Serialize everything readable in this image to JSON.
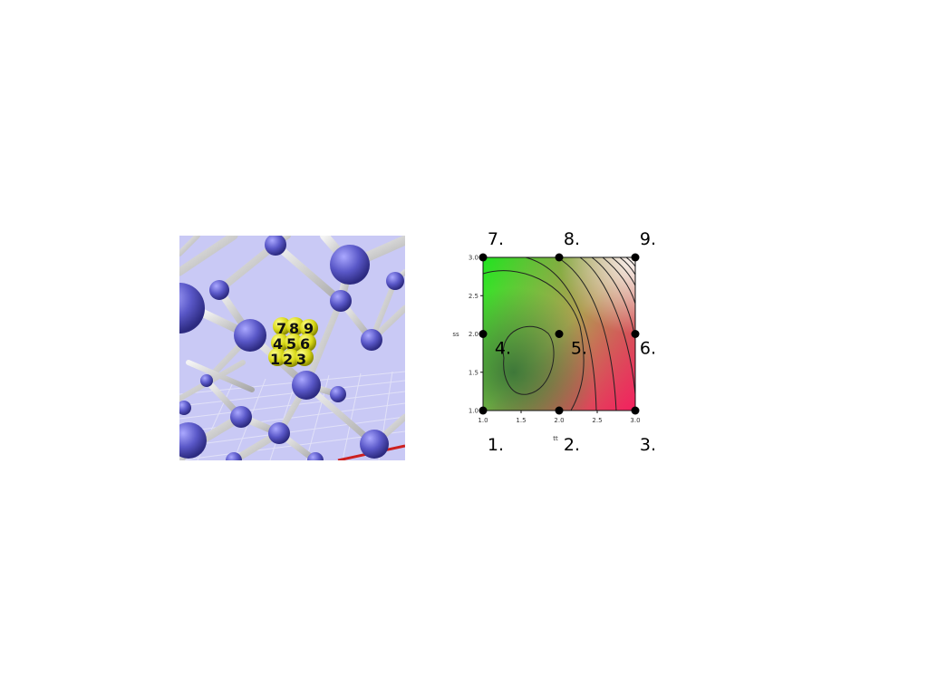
{
  "molecule": {
    "cluster_labels": [
      "7",
      "8",
      "9",
      "4",
      "5",
      "6",
      "1",
      "2",
      "3"
    ],
    "colors": {
      "background": "#c9c9f5",
      "atom": "#5a58c8",
      "bond": "#d8d8d8",
      "cluster": "#e0e020"
    }
  },
  "contour_plot": {
    "xlabel": "tt",
    "ylabel": "ss",
    "x_ticks": [
      "1.0",
      "1.5",
      "2.0",
      "2.5",
      "3.0"
    ],
    "y_ticks": [
      "1.0",
      "1.5",
      "2.0",
      "2.5",
      "3.0"
    ],
    "xlim": [
      1.0,
      3.0
    ],
    "ylim": [
      1.0,
      3.0
    ],
    "points": [
      {
        "label": "1.",
        "x": 1.0,
        "y": 1.0
      },
      {
        "label": "2.",
        "x": 2.0,
        "y": 1.0
      },
      {
        "label": "3.",
        "x": 3.0,
        "y": 1.0
      },
      {
        "label": "4.",
        "x": 1.0,
        "y": 2.0
      },
      {
        "label": "5.",
        "x": 2.0,
        "y": 2.0
      },
      {
        "label": "6.",
        "x": 3.0,
        "y": 2.0
      },
      {
        "label": "7.",
        "x": 1.0,
        "y": 3.0
      },
      {
        "label": "8.",
        "x": 2.0,
        "y": 3.0
      },
      {
        "label": "9.",
        "x": 3.0,
        "y": 3.0
      }
    ],
    "colors": {
      "green": "#22e022",
      "red": "#f22060",
      "dark": "#3a6a3a",
      "contour": "#222222"
    }
  }
}
